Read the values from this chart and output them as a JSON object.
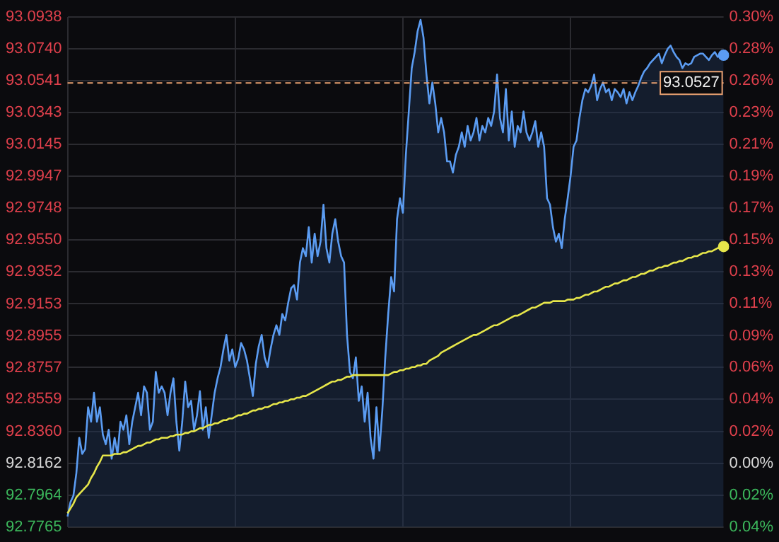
{
  "chart_data": {
    "type": "area",
    "categories": [
      null,
      null,
      null,
      null,
      null,
      null,
      null,
      null,
      null,
      null,
      null,
      null,
      null,
      null,
      null,
      null,
      null,
      null,
      null,
      null,
      null,
      null,
      null,
      null,
      null,
      null,
      null,
      null,
      null,
      null,
      null,
      null,
      null,
      null,
      null,
      null,
      null,
      null,
      null,
      null,
      null,
      null,
      null,
      null,
      null,
      null,
      null,
      null,
      null,
      null,
      null,
      null,
      null,
      null,
      null,
      null,
      null,
      null,
      null,
      null,
      null,
      null,
      null,
      null,
      null,
      null,
      null,
      null,
      null,
      null,
      null,
      null,
      null,
      null,
      null,
      null,
      null,
      null,
      null,
      null,
      null,
      null,
      null,
      null,
      null,
      null,
      null,
      null,
      null,
      null,
      null,
      null,
      null,
      null,
      null,
      null,
      null,
      null,
      null,
      null,
      null,
      null,
      null,
      null,
      null,
      null,
      null,
      null,
      null,
      null,
      null,
      null,
      null,
      null,
      null,
      null,
      null,
      null,
      null,
      null,
      null,
      null,
      null,
      null,
      null,
      null,
      null,
      null,
      null,
      null,
      null,
      null,
      null,
      null,
      null,
      null,
      null,
      null,
      null,
      null,
      null,
      null,
      null,
      null,
      null,
      null,
      null,
      null,
      null,
      null,
      null,
      null,
      null,
      null,
      null,
      null,
      null,
      null,
      null,
      null,
      null,
      null,
      null,
      null,
      null,
      null,
      null,
      null,
      null,
      null,
      null,
      null,
      null,
      null,
      null,
      null,
      null,
      null,
      null,
      null,
      null,
      null,
      null,
      null,
      null,
      null,
      null,
      null,
      null,
      null,
      null,
      null,
      null,
      null,
      null,
      null,
      null,
      null,
      null,
      null,
      null,
      null,
      null,
      null,
      null,
      null,
      null,
      null,
      null,
      null,
      null,
      null,
      null,
      null,
      null,
      null,
      null,
      null,
      null,
      null,
      null,
      null,
      null,
      null
    ],
    "series": [
      {
        "type": "area",
        "color": "#5b9cf2",
        "values": [
          92.783,
          92.792,
          92.796,
          92.81,
          92.832,
          92.822,
          92.825,
          92.851,
          92.842,
          92.86,
          92.842,
          92.851,
          92.834,
          92.828,
          92.837,
          92.819,
          92.832,
          92.822,
          92.842,
          92.837,
          92.846,
          92.828,
          92.842,
          92.851,
          92.86,
          92.846,
          92.864,
          92.86,
          92.837,
          92.842,
          92.873,
          92.86,
          92.864,
          92.86,
          92.846,
          92.86,
          92.869,
          92.842,
          92.824,
          92.842,
          92.867,
          92.851,
          92.855,
          92.837,
          92.846,
          92.861,
          92.837,
          92.851,
          92.832,
          92.846,
          92.86,
          92.869,
          92.876,
          92.887,
          92.896,
          92.88,
          92.887,
          92.876,
          92.881,
          92.891,
          92.887,
          92.88,
          92.869,
          92.858,
          92.878,
          92.889,
          92.896,
          92.882,
          92.876,
          92.887,
          92.896,
          92.902,
          92.896,
          92.909,
          92.905,
          92.916,
          92.925,
          92.927,
          92.918,
          92.941,
          92.95,
          92.945,
          92.963,
          92.941,
          92.959,
          92.945,
          92.954,
          92.977,
          92.95,
          92.941,
          92.959,
          92.968,
          92.954,
          92.945,
          92.941,
          92.896,
          92.873,
          92.869,
          92.882,
          92.855,
          92.864,
          92.842,
          92.86,
          92.832,
          92.819,
          92.851,
          92.824,
          92.849,
          92.882,
          92.909,
          92.932,
          92.923,
          92.968,
          92.981,
          92.972,
          93.008,
          93.035,
          93.062,
          93.072,
          93.085,
          93.092,
          93.081,
          93.058,
          93.04,
          93.053,
          93.04,
          93.022,
          93.031,
          93.022,
          93.004,
          93.004,
          92.997,
          93.008,
          93.013,
          93.022,
          93.013,
          93.026,
          93.017,
          93.022,
          93.031,
          93.017,
          93.026,
          93.022,
          93.031,
          93.026,
          93.035,
          93.058,
          93.031,
          93.022,
          93.049,
          93.017,
          93.035,
          93.013,
          93.026,
          93.022,
          93.035,
          93.022,
          93.017,
          93.022,
          93.029,
          93.013,
          93.022,
          93.013,
          92.981,
          92.977,
          92.963,
          92.954,
          92.959,
          92.95,
          92.968,
          92.981,
          92.995,
          93.013,
          93.017,
          93.031,
          93.042,
          93.049,
          93.047,
          93.051,
          93.058,
          93.042,
          93.049,
          93.053,
          93.047,
          93.049,
          93.042,
          93.049,
          93.047,
          93.044,
          93.049,
          93.04,
          93.047,
          93.042,
          93.047,
          93.051,
          93.056,
          93.06,
          93.062,
          93.065,
          93.067,
          93.069,
          93.071,
          93.065,
          93.07,
          93.074,
          93.076,
          93.072,
          93.069,
          93.067,
          93.062,
          93.065,
          93.064,
          93.065,
          93.069,
          93.07,
          93.071,
          93.071,
          93.069,
          93.067,
          93.07,
          93.072,
          93.069,
          93.07,
          93.07
        ]
      },
      {
        "type": "line",
        "color": "#e6e64a",
        "values": [
          92.785,
          92.788,
          92.791,
          92.795,
          92.797,
          92.799,
          92.801,
          92.803,
          92.807,
          92.81,
          92.814,
          92.817,
          92.821,
          92.821,
          92.821,
          92.821,
          92.822,
          92.822,
          92.822,
          92.823,
          92.823,
          92.824,
          92.825,
          92.826,
          92.827,
          92.827,
          92.828,
          92.829,
          92.829,
          92.83,
          92.831,
          92.831,
          92.832,
          92.832,
          92.832,
          92.833,
          92.833,
          92.834,
          92.834,
          92.834,
          92.835,
          92.835,
          92.836,
          92.836,
          92.837,
          92.838,
          92.838,
          92.839,
          92.84,
          92.84,
          92.841,
          92.841,
          92.842,
          92.843,
          92.843,
          92.844,
          92.844,
          92.845,
          92.846,
          92.846,
          92.847,
          92.847,
          92.848,
          92.849,
          92.849,
          92.85,
          92.85,
          92.851,
          92.851,
          92.852,
          92.853,
          92.853,
          92.854,
          92.854,
          92.855,
          92.855,
          92.856,
          92.856,
          92.857,
          92.857,
          92.858,
          92.858,
          92.859,
          92.86,
          92.861,
          92.862,
          92.863,
          92.864,
          92.865,
          92.866,
          92.867,
          92.867,
          92.868,
          92.868,
          92.869,
          92.87,
          92.87,
          92.871,
          92.871,
          92.871,
          92.871,
          92.871,
          92.871,
          92.871,
          92.871,
          92.871,
          92.871,
          92.871,
          92.871,
          92.871,
          92.872,
          92.873,
          92.873,
          92.874,
          92.874,
          92.875,
          92.875,
          92.876,
          92.876,
          92.877,
          92.877,
          92.878,
          92.878,
          92.88,
          92.881,
          92.882,
          92.883,
          92.885,
          92.886,
          92.887,
          92.888,
          92.889,
          92.89,
          92.891,
          92.892,
          92.893,
          92.894,
          92.895,
          92.896,
          92.896,
          92.897,
          92.898,
          92.899,
          92.9,
          92.901,
          92.902,
          92.902,
          92.903,
          92.904,
          92.905,
          92.906,
          92.907,
          92.908,
          92.908,
          92.909,
          92.91,
          92.911,
          92.912,
          92.913,
          92.913,
          92.914,
          92.915,
          92.916,
          92.916,
          92.916,
          92.917,
          92.917,
          92.917,
          92.917,
          92.917,
          92.918,
          92.918,
          92.918,
          92.919,
          92.919,
          92.92,
          92.921,
          92.921,
          92.922,
          92.923,
          92.923,
          92.924,
          92.925,
          92.926,
          92.926,
          92.927,
          92.928,
          92.928,
          92.929,
          92.93,
          92.93,
          92.931,
          92.932,
          92.932,
          92.933,
          92.934,
          92.934,
          92.935,
          92.936,
          92.936,
          92.937,
          92.938,
          92.938,
          92.939,
          92.939,
          92.94,
          92.941,
          92.941,
          92.942,
          92.942,
          92.943,
          92.944,
          92.944,
          92.945,
          92.945,
          92.946,
          92.947,
          92.947,
          92.948,
          92.948,
          92.949,
          92.95,
          92.95,
          92.951
        ]
      }
    ],
    "ylim": [
      92.7765,
      93.0938
    ],
    "yticks": [
      92.7765,
      92.7964,
      92.8162,
      {
        "value": 92.836,
        "label": "92.8360"
      },
      92.8559,
      92.8757,
      92.8955,
      92.9153,
      92.9352,
      {
        "value": 92.955,
        "label": "92.9550"
      },
      92.9748,
      92.9947,
      93.0145,
      93.0343,
      93.0541,
      {
        "value": 93.074,
        "label": "93.0740"
      },
      93.0938
    ],
    "y2lim": [
      -0.0428,
      0.2991
    ],
    "y2ticks": [
      {
        "value": -0.0428,
        "label": "0.04%"
      },
      {
        "value": -0.0213,
        "label": "0.02%"
      },
      {
        "value": 0,
        "label": "0.00%"
      },
      {
        "value": 0.0213,
        "label": "0.02%"
      },
      {
        "value": 0.0428,
        "label": "0.04%"
      },
      {
        "value": 0.0641,
        "label": "0.06%"
      },
      {
        "value": 0.0854,
        "label": "0.09%"
      },
      {
        "value": 0.1068,
        "label": "0.11%"
      },
      {
        "value": 0.1282,
        "label": "0.13%"
      },
      {
        "value": 0.1495,
        "label": "0.15%"
      },
      {
        "value": 0.1709,
        "label": "0.17%"
      },
      {
        "value": 0.1923,
        "label": "0.19%"
      },
      {
        "value": 0.2136,
        "label": "0.21%"
      },
      {
        "value": 0.235,
        "label": "0.23%"
      },
      {
        "value": 0.2563,
        "label": "0.26%"
      },
      {
        "value": 0.2778,
        "label": "0.28%"
      },
      {
        "value": 0.2991,
        "label": "0.30%"
      }
    ],
    "ref_lines": [
      {
        "axis": "y",
        "value": 93.0527,
        "label": "93.0527",
        "color": "#e8a070",
        "line_style": "dashed"
      }
    ],
    "grid": true,
    "tick_labels": "y",
    "legend": false
  }
}
